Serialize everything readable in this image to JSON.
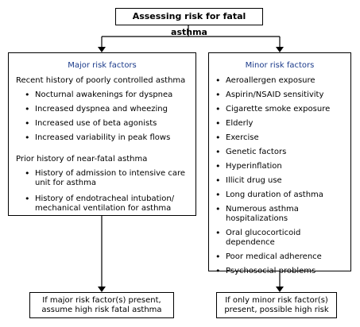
{
  "title": "Assessing risk for fatal asthma",
  "major": {
    "heading": "Major risk factors",
    "section1": {
      "heading": "Recent history of poorly controlled asthma",
      "items": [
        "Nocturnal awakenings for dyspnea",
        "Increased dyspnea and wheezing",
        "Increased use of beta agonists",
        "Increased variability in peak flows"
      ]
    },
    "section2": {
      "heading": "Prior history of near-fatal asthma",
      "items": [
        "History of admission to intensive care unit for asthma",
        "History of endotracheal intubation/ mechanical ventilation for asthma"
      ]
    },
    "result": "If major risk factor(s) present, assume high risk fatal asthma"
  },
  "minor": {
    "heading": "Minor risk factors",
    "items": [
      "Aeroallergen exposure",
      "Aspirin/NSAID sensitivity",
      "Cigarette smoke exposure",
      "Elderly",
      "Exercise",
      "Genetic factors",
      "Hyperinflation",
      "Illicit drug use",
      "Long duration of asthma",
      "Numerous asthma hospitalizations",
      "Oral glucocorticoid dependence",
      "Poor medical adherence",
      "Psychosocial problems"
    ],
    "result": "If only minor risk factor(s) present, possible high risk"
  },
  "colors": {
    "heading_blue": "#1a3a8a",
    "line": "#000000"
  }
}
